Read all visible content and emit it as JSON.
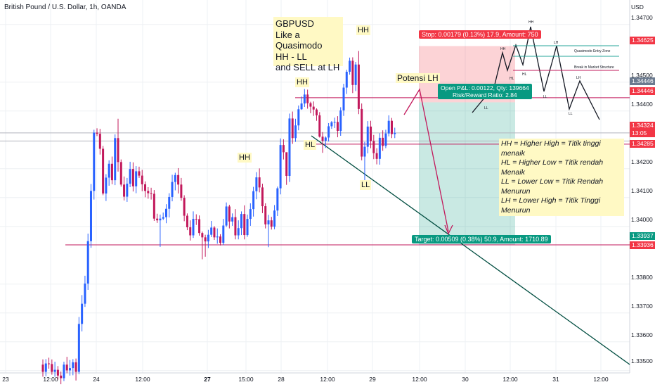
{
  "chart_data": {
    "type": "candlestick",
    "title": "British Pound / U.S. Dollar, 1h, OANDA",
    "y_axis": {
      "unit": "USD",
      "range": [
        1.3348,
        1.3477
      ],
      "ticks": [
        "1.34700",
        "1.34500",
        "1.34400",
        "1.34200",
        "1.34100",
        "1.34000",
        "1.33800",
        "1.33700",
        "1.33600",
        "1.33500"
      ],
      "tags": [
        {
          "value": "1.34625",
          "color": "#f23645"
        },
        {
          "value": "1.34446",
          "color": "#6b7a8f"
        },
        {
          "value": "1.34446",
          "color": "#f23645"
        },
        {
          "value": "1.34324",
          "color": "#f23645"
        },
        {
          "value": "13:05",
          "color": "#f23645"
        },
        {
          "value": "1.34285",
          "color": "#f23645"
        },
        {
          "value": "1.33937",
          "color": "#089981"
        },
        {
          "value": "1.33936",
          "color": "#f23645"
        }
      ]
    },
    "x_axis": {
      "ticks": [
        "23",
        "12:00",
        "24",
        "12:00",
        "27",
        "15:00",
        "28",
        "12:00",
        "29",
        "12:00",
        "30",
        "12:00",
        "31",
        "12:00"
      ]
    },
    "up_color": "#2962ff",
    "down_color": "#c2185b",
    "candles": [
      [
        1.33521,
        1.33496,
        1.33539,
        1.33479
      ],
      [
        1.33496,
        1.33525,
        1.3354,
        1.33481
      ],
      [
        1.33525,
        1.33523,
        1.33545,
        1.33507
      ],
      [
        1.33523,
        1.33496,
        1.33539,
        1.33486
      ],
      [
        1.33496,
        1.33503,
        1.33531,
        1.33479
      ],
      [
        1.33503,
        1.33483,
        1.33516,
        1.33469
      ],
      [
        1.33483,
        1.33474,
        1.33497,
        1.33453
      ],
      [
        1.33474,
        1.33521,
        1.33531,
        1.33464
      ],
      [
        1.33521,
        1.33501,
        1.33548,
        1.33491
      ],
      [
        1.33501,
        1.33509,
        1.33537,
        1.33483
      ],
      [
        1.33509,
        1.33529,
        1.3354,
        1.33484
      ],
      [
        1.33529,
        1.33496,
        1.33542,
        1.33466
      ],
      [
        1.33496,
        1.33662,
        1.33686,
        1.33488
      ],
      [
        1.33662,
        1.33732,
        1.33762,
        1.33636
      ],
      [
        1.33732,
        1.33802,
        1.33829,
        1.33721
      ],
      [
        1.33802,
        1.33949,
        1.33975,
        1.3378
      ],
      [
        1.33949,
        1.34123,
        1.34147,
        1.33926
      ],
      [
        1.34123,
        1.34325,
        1.34335,
        1.34093
      ],
      [
        1.34325,
        1.34321,
        1.3434,
        1.34313
      ],
      [
        1.34321,
        1.34269,
        1.34338,
        1.34249
      ],
      [
        1.34269,
        1.34114,
        1.34279,
        1.34108
      ],
      [
        1.34114,
        1.34169,
        1.34181,
        1.34088
      ],
      [
        1.34169,
        1.34217,
        1.34229,
        1.34141
      ],
      [
        1.34217,
        1.3416,
        1.34242,
        1.34146
      ],
      [
        1.3416,
        1.34306,
        1.34319,
        1.34143
      ],
      [
        1.34306,
        1.34223,
        1.34373,
        1.3419
      ],
      [
        1.34223,
        1.34145,
        1.34232,
        1.34138
      ],
      [
        1.34145,
        1.34103,
        1.34173,
        1.3409
      ],
      [
        1.34103,
        1.34148,
        1.34168,
        1.34085
      ],
      [
        1.34148,
        1.34199,
        1.34224,
        1.34136
      ],
      [
        1.34199,
        1.34139,
        1.34222,
        1.34121
      ],
      [
        1.34139,
        1.34191,
        1.34209,
        1.34115
      ],
      [
        1.34191,
        1.34176,
        1.34207,
        1.34168
      ],
      [
        1.34176,
        1.34146,
        1.34196,
        1.34122
      ],
      [
        1.34146,
        1.34123,
        1.34156,
        1.34101
      ],
      [
        1.34123,
        1.34115,
        1.34136,
        1.34096
      ],
      [
        1.34115,
        1.34113,
        1.34134,
        1.34093
      ],
      [
        1.34113,
        1.34027,
        1.34126,
        1.34019
      ],
      [
        1.34027,
        1.34021,
        1.34044,
        1.34012
      ],
      [
        1.34021,
        1.34027,
        1.34041,
        1.33929
      ],
      [
        1.34027,
        1.34032,
        1.34048,
        1.34022
      ],
      [
        1.34032,
        1.34061,
        1.34077,
        1.34011
      ],
      [
        1.34061,
        1.34102,
        1.34115,
        1.34031
      ],
      [
        1.34102,
        1.34154,
        1.34179,
        1.34087
      ],
      [
        1.34154,
        1.34178,
        1.34186,
        1.34125
      ],
      [
        1.34178,
        1.34145,
        1.34202,
        1.34114
      ],
      [
        1.34145,
        1.34099,
        1.34168,
        1.34089
      ],
      [
        1.34099,
        1.34037,
        1.34108,
        1.34018
      ],
      [
        1.34037,
        1.33997,
        1.34045,
        1.33987
      ],
      [
        1.33997,
        1.33969,
        1.34021,
        1.33951
      ],
      [
        1.33969,
        1.34026,
        1.34052,
        1.3396
      ],
      [
        1.34026,
        1.34025,
        1.34042,
        1.34005
      ],
      [
        1.34025,
        1.33977,
        1.34038,
        1.33968
      ],
      [
        1.33977,
        1.33962,
        1.33982,
        1.33886
      ],
      [
        1.33962,
        1.33948,
        1.33971,
        1.33895
      ],
      [
        1.33948,
        1.33971,
        1.33988,
        1.33925
      ],
      [
        1.33971,
        1.33996,
        1.34019,
        1.33963
      ],
      [
        1.33996,
        1.33962,
        1.34001,
        1.33953
      ],
      [
        1.33962,
        1.33965,
        1.33993,
        1.3394
      ],
      [
        1.33965,
        1.33943,
        1.33973,
        1.33934
      ],
      [
        1.33943,
        1.34003,
        1.34026,
        1.33935
      ],
      [
        1.34003,
        1.34069,
        1.34083,
        1.33998
      ],
      [
        1.34069,
        1.34017,
        1.34075,
        1.33993
      ],
      [
        1.34017,
        1.34032,
        1.34045,
        1.34002
      ],
      [
        1.34032,
        1.33969,
        1.3406,
        1.33955
      ],
      [
        1.33969,
        1.33994,
        1.34021,
        1.33955
      ],
      [
        1.33994,
        1.34043,
        1.34052,
        1.3397
      ],
      [
        1.34043,
        1.3397,
        1.34073,
        1.33955
      ],
      [
        1.3397,
        1.34026,
        1.34041,
        1.33964
      ],
      [
        1.34026,
        1.3406,
        1.3408,
        1.34002
      ],
      [
        1.3406,
        1.34122,
        1.34137,
        1.34034
      ],
      [
        1.34122,
        1.3417,
        1.34188,
        1.34094
      ],
      [
        1.3417,
        1.34135,
        1.34201,
        1.34118
      ],
      [
        1.34135,
        1.3407,
        1.34148,
        1.34046
      ],
      [
        1.3407,
        1.34007,
        1.3408,
        1.33993
      ],
      [
        1.34007,
        1.34021,
        1.3404,
        1.33928
      ],
      [
        1.34021,
        1.33999,
        1.34033,
        1.33989
      ],
      [
        1.33999,
        1.34055,
        1.34074,
        1.3399
      ],
      [
        1.34055,
        1.34132,
        1.34138,
        1.34036
      ],
      [
        1.34132,
        1.34282,
        1.34305,
        1.34111
      ],
      [
        1.34282,
        1.34257,
        1.34302,
        1.34232
      ],
      [
        1.34257,
        1.34175,
        1.34257,
        1.34144
      ],
      [
        1.34175,
        1.34374,
        1.34391,
        1.34154
      ],
      [
        1.34374,
        1.34306,
        1.34398,
        1.34286
      ],
      [
        1.34306,
        1.3435,
        1.34373,
        1.34293
      ],
      [
        1.3435,
        1.34406,
        1.34419,
        1.34333
      ],
      [
        1.34406,
        1.34426,
        1.3445,
        1.34404
      ],
      [
        1.34426,
        1.34457,
        1.34476,
        1.34414
      ],
      [
        1.34457,
        1.34427,
        1.34474,
        1.34408
      ],
      [
        1.34427,
        1.34415,
        1.34432,
        1.34392
      ],
      [
        1.34415,
        1.34405,
        1.34433,
        1.34383
      ],
      [
        1.34405,
        1.34385,
        1.34409,
        1.34366
      ],
      [
        1.34385,
        1.34311,
        1.34396,
        1.34308
      ],
      [
        1.34311,
        1.34297,
        1.34327,
        1.34255
      ],
      [
        1.34297,
        1.34308,
        1.34312,
        1.34272
      ],
      [
        1.34308,
        1.34347,
        1.34358,
        1.34294
      ],
      [
        1.34347,
        1.34361,
        1.34365,
        1.34338
      ],
      [
        1.34361,
        1.34362,
        1.34377,
        1.34341
      ],
      [
        1.34362,
        1.34331,
        1.34382,
        1.34309
      ],
      [
        1.34331,
        1.34402,
        1.34413,
        1.34314
      ],
      [
        1.34402,
        1.34481,
        1.34494,
        1.34383
      ],
      [
        1.34481,
        1.34536,
        1.34543,
        1.34459
      ],
      [
        1.34536,
        1.34574,
        1.34585,
        1.34526
      ],
      [
        1.34574,
        1.3449,
        1.34586,
        1.34462
      ],
      [
        1.3449,
        1.34561,
        1.3457,
        1.34469
      ],
      [
        1.34561,
        1.34407,
        1.34608,
        1.34389
      ],
      [
        1.34407,
        1.34242,
        1.34426,
        1.34229
      ],
      [
        1.34242,
        1.34276,
        1.34293,
        1.3416
      ],
      [
        1.34276,
        1.34346,
        1.34365,
        1.34253
      ],
      [
        1.34346,
        1.34296,
        1.34366,
        1.34271
      ],
      [
        1.34296,
        1.34254,
        1.34317,
        1.34233
      ],
      [
        1.34254,
        1.34234,
        1.34271,
        1.34215
      ],
      [
        1.34234,
        1.34307,
        1.34323,
        1.34214
      ],
      [
        1.34307,
        1.34279,
        1.34333,
        1.34262
      ],
      [
        1.34279,
        1.34322,
        1.34335,
        1.34271
      ],
      [
        1.34322,
        1.34366,
        1.34385,
        1.34312
      ],
      [
        1.34366,
        1.3432,
        1.34376,
        1.34306
      ],
      [
        1.3432,
        1.34324,
        1.34342,
        1.34306
      ]
    ],
    "grid": true
  },
  "annotations": {
    "main": [
      "GBPUSD",
      "Like a Quasimodo",
      "HH - LL",
      "and SELL at LH"
    ],
    "swing_labels": [
      "HH",
      "HH",
      "HH",
      "HL",
      "LL",
      "Potensi LH"
    ],
    "legend_lines": [
      "HH = Higher High = Titik tinggi menaik",
      "HL = Higher Low  = Titik rendah Menaik",
      "LL = Lower Low = Titik Rendah Menurun",
      "LH = Lower High = Titik Tinggi Menurun"
    ],
    "position": {
      "stop": "Stop: 0.00179 (0.13%) 17.9, Amount: 750",
      "open": "Open P&L: 0.00122, Qty: 139664",
      "ratio": "Risk/Reward Ratio: 2.84",
      "target": "Target: 0.00509 (0.38%) 50.9, Amount: 1710.89"
    },
    "projection_labels": [
      "HH",
      "HH",
      "HL",
      "LL",
      "HL",
      "LH",
      "LL",
      "LL",
      "LH"
    ],
    "projection_notes": [
      "Quasimodo Entry Zone",
      "Break in Market Structure"
    ]
  }
}
